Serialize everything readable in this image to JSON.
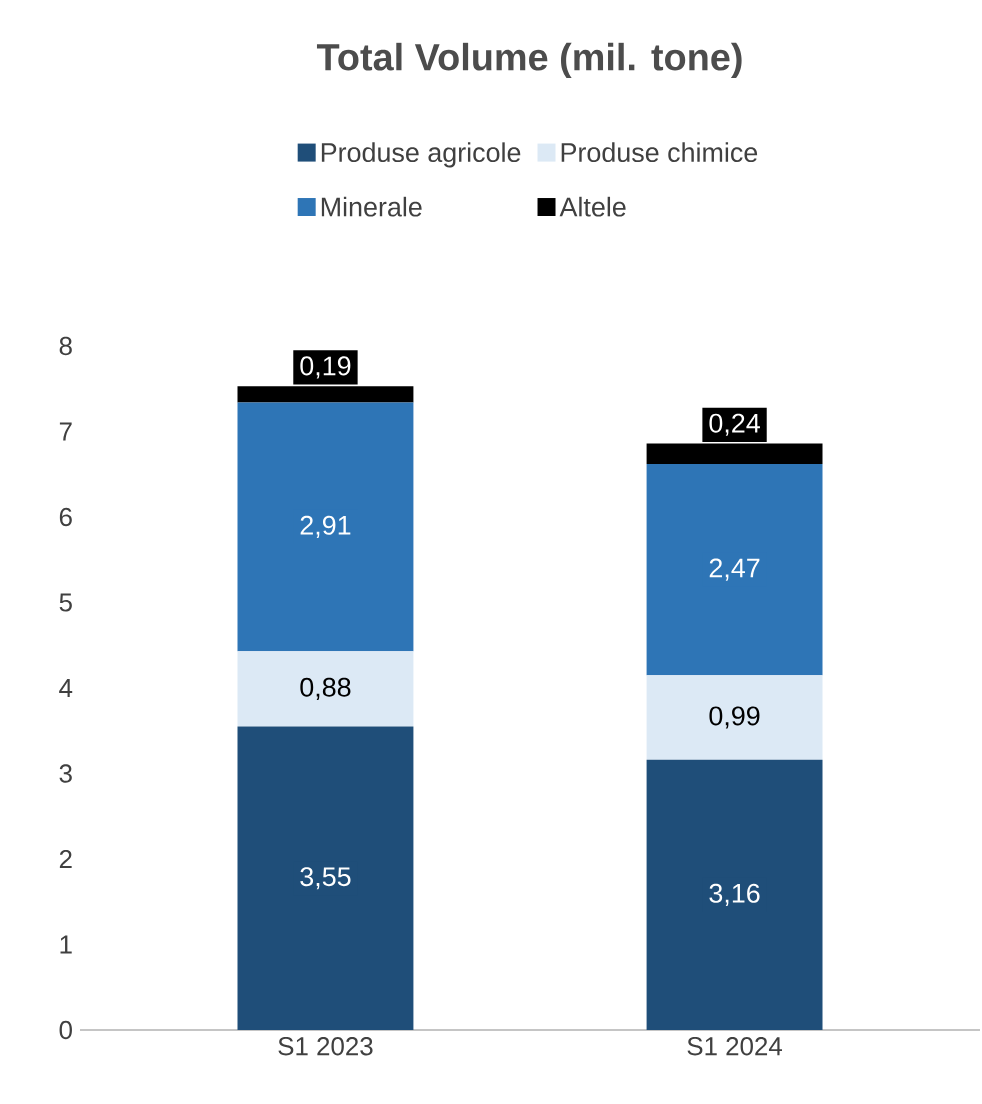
{
  "chart_data": {
    "type": "bar",
    "title": "Total Volume (mil. tone)",
    "categories": [
      "S1 2023",
      "S1 2024"
    ],
    "stacked": true,
    "legend": "top",
    "ylim": [
      0,
      8
    ],
    "yticks": [
      0,
      1,
      2,
      3,
      4,
      5,
      6,
      7,
      8
    ],
    "series": [
      {
        "name": "Produse agricole",
        "color": "#1f4e79",
        "values": [
          3.55,
          3.16
        ],
        "value_labels": [
          "3,55",
          "3,16"
        ]
      },
      {
        "name": "Produse chimice",
        "color": "#dce9f5",
        "values": [
          0.88,
          0.99
        ],
        "value_labels": [
          "0,88",
          "0,99"
        ]
      },
      {
        "name": "Minerale",
        "color": "#2e75b6",
        "values": [
          2.91,
          2.47
        ],
        "value_labels": [
          "2,91",
          "2,47"
        ]
      },
      {
        "name": "Altele",
        "color": "#000000",
        "values": [
          0.19,
          0.24
        ],
        "value_labels": [
          "0,19",
          "0,24"
        ]
      }
    ]
  }
}
